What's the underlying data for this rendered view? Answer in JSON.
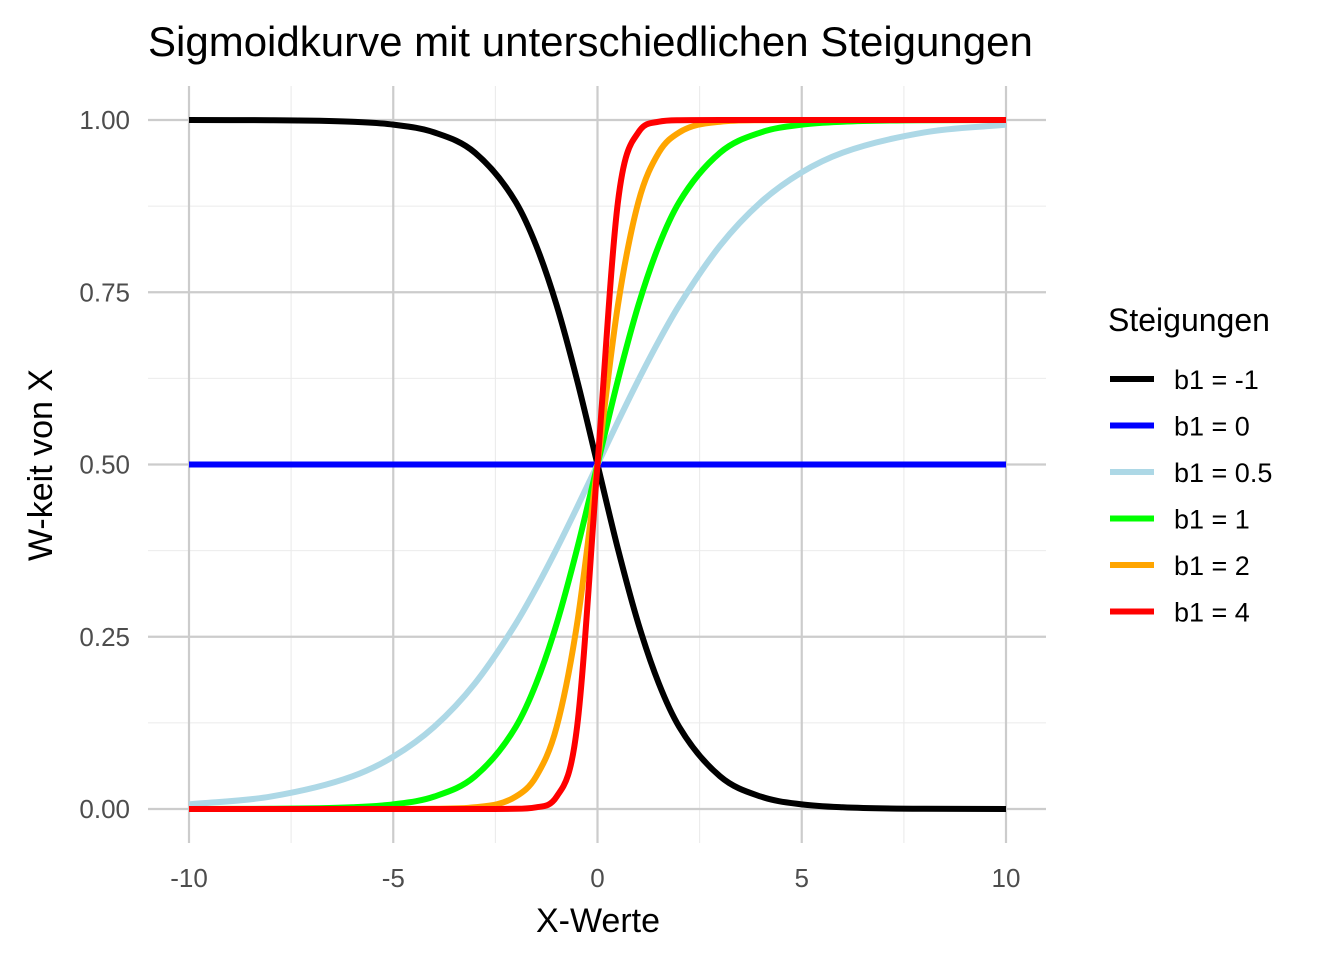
{
  "chart_data": {
    "type": "line",
    "title": "Sigmoidkurve mit unterschiedlichen Steigungen",
    "xlabel": "X-Werte",
    "ylabel": "W-keit von X",
    "xlim": [
      -10,
      10
    ],
    "ylim": [
      0,
      1
    ],
    "x_ticks": [
      -10,
      -5,
      0,
      5,
      10
    ],
    "x_tick_labels": [
      "-10",
      "-5",
      "0",
      "5",
      "10"
    ],
    "y_ticks": [
      0,
      0.25,
      0.5,
      0.75,
      1
    ],
    "y_tick_labels": [
      "0.00",
      "0.25",
      "0.50",
      "0.75",
      "1.00"
    ],
    "grid": true,
    "legend": {
      "title": "Steigungen",
      "placement": "right"
    },
    "x": [
      -10,
      -8,
      -6,
      -5,
      -4,
      -3,
      -2,
      -1.5,
      -1,
      -0.5,
      0,
      0.5,
      1,
      1.5,
      2,
      3,
      4,
      5,
      6,
      8,
      10
    ],
    "series": [
      {
        "name": "b1 = -1",
        "color": "#000000",
        "values": [
          0.99995,
          0.9997,
          0.9975,
          0.9933,
          0.982,
          0.9526,
          0.8808,
          0.8176,
          0.7311,
          0.6225,
          0.5,
          0.3775,
          0.2689,
          0.1824,
          0.1192,
          0.0474,
          0.018,
          0.0067,
          0.0025,
          0.0003,
          5e-05
        ]
      },
      {
        "name": "b1 = 0",
        "color": "#0000ff",
        "values": [
          0.5,
          0.5,
          0.5,
          0.5,
          0.5,
          0.5,
          0.5,
          0.5,
          0.5,
          0.5,
          0.5,
          0.5,
          0.5,
          0.5,
          0.5,
          0.5,
          0.5,
          0.5,
          0.5,
          0.5,
          0.5
        ]
      },
      {
        "name": "b1 = 0.5",
        "color": "#add8e6",
        "values": [
          0.0067,
          0.018,
          0.0474,
          0.0759,
          0.1192,
          0.1824,
          0.2689,
          0.3208,
          0.3775,
          0.4378,
          0.5,
          0.5622,
          0.6225,
          0.6792,
          0.7311,
          0.8176,
          0.8808,
          0.9241,
          0.9526,
          0.982,
          0.9933
        ]
      },
      {
        "name": "b1 = 1",
        "color": "#00ff00",
        "values": [
          5e-05,
          0.0003,
          0.0025,
          0.0067,
          0.018,
          0.0474,
          0.1192,
          0.1824,
          0.2689,
          0.3775,
          0.5,
          0.6225,
          0.7311,
          0.8176,
          0.8808,
          0.9526,
          0.982,
          0.9933,
          0.9975,
          0.9997,
          0.99995
        ]
      },
      {
        "name": "b1 = 2",
        "color": "#ffa500",
        "values": [
          0,
          0,
          1e-05,
          5e-05,
          0.0003,
          0.0025,
          0.018,
          0.0474,
          0.1192,
          0.2689,
          0.5,
          0.7311,
          0.8808,
          0.9526,
          0.982,
          0.9975,
          0.9997,
          0.99995,
          0.99999,
          1,
          1
        ]
      },
      {
        "name": "b1 = 4",
        "color": "#ff0000",
        "values": [
          0,
          0,
          0,
          0,
          0,
          1e-05,
          0.0003,
          0.0025,
          0.018,
          0.1192,
          0.5,
          0.8808,
          0.982,
          0.9975,
          0.9997,
          0.99999,
          1,
          1,
          1,
          1,
          1
        ]
      }
    ]
  }
}
